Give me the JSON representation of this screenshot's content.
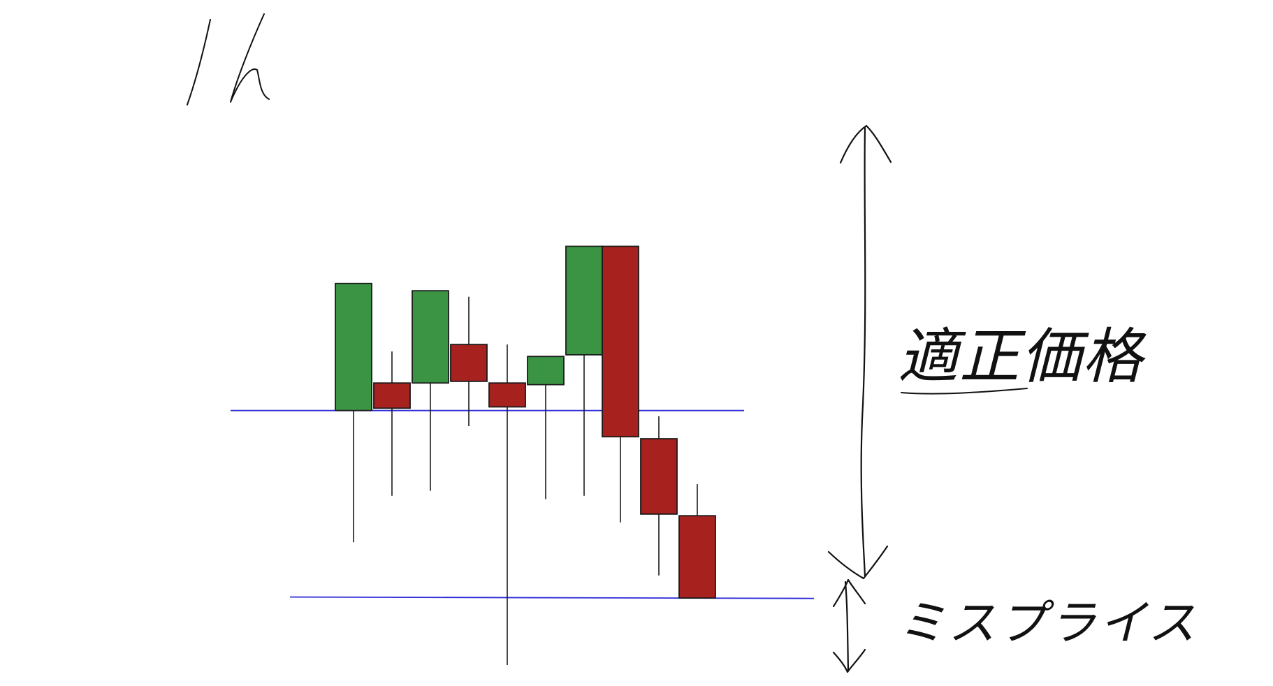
{
  "title_label": "1h",
  "fair_value_label": "適正価格",
  "mispricing_label": "ミスプライス",
  "colors": {
    "bull": "#3b9444",
    "bear": "#a7211f",
    "level_line": "#2a2ad8",
    "ink": "#111111"
  },
  "levels": [
    {
      "name": "upper-level",
      "price": 0.647
    },
    {
      "name": "lower-level",
      "price": 0.085
    }
  ],
  "candles": [
    {
      "dir": "bull",
      "open": 0.647,
      "close": 1.03,
      "high": 1.03,
      "low": 0.25
    },
    {
      "dir": "bear",
      "open": 0.73,
      "close": 0.654,
      "high": 0.825,
      "low": 0.39
    },
    {
      "dir": "bull",
      "open": 0.73,
      "close": 1.008,
      "high": 1.008,
      "low": 0.405
    },
    {
      "dir": "bear",
      "open": 0.846,
      "close": 0.735,
      "high": 0.99,
      "low": 0.6
    },
    {
      "dir": "bear",
      "open": 0.73,
      "close": 0.658,
      "high": 0.846,
      "low": -0.12
    },
    {
      "dir": "bull",
      "open": 0.725,
      "close": 0.81,
      "high": 0.81,
      "low": 0.38
    },
    {
      "dir": "bull",
      "open": 0.815,
      "close": 1.142,
      "high": 1.142,
      "low": 0.39
    },
    {
      "dir": "bear",
      "open": 1.142,
      "close": 0.568,
      "high": 1.142,
      "low": 0.31
    },
    {
      "dir": "bear",
      "open": 0.562,
      "close": 0.335,
      "high": 0.63,
      "low": 0.15
    },
    {
      "dir": "bear",
      "open": 0.33,
      "close": 0.082,
      "high": 0.425,
      "low": 0.082
    }
  ]
}
